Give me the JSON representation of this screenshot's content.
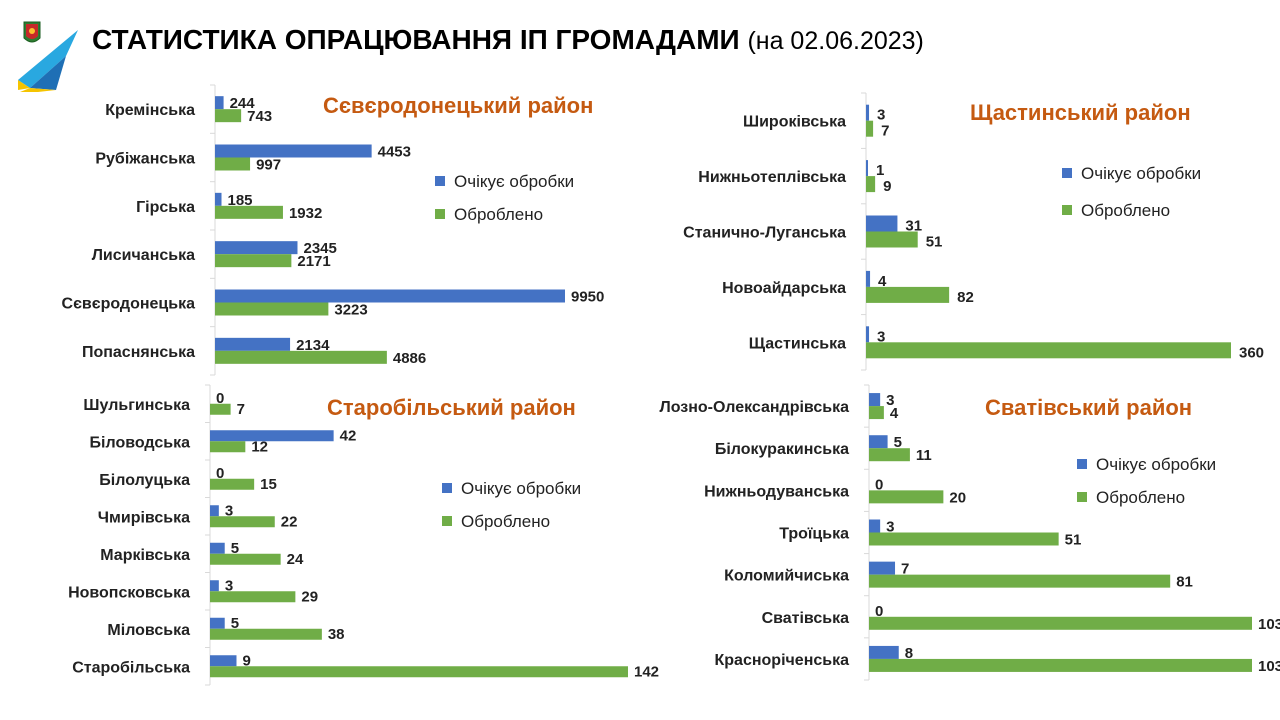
{
  "header": {
    "title": "СТАТИСТИКА ОПРАЦЮВАННЯ ІП ГРОМАДАМИ",
    "date": "(на 02.06.2023)"
  },
  "colors": {
    "pending": "#4472c4",
    "processed": "#70ad47",
    "title": "#c55a11"
  },
  "chart_data": [
    {
      "type": "bar",
      "orientation": "horizontal",
      "title": "Сєвєродонецький район",
      "legend_position": "right",
      "categories": [
        "Кремінська",
        "Рубіжанська",
        "Гірська",
        "Лисичанська",
        "Сєвєродонецька",
        "Попаснянська"
      ],
      "series": [
        {
          "name": "Очікує обробки",
          "values": [
            244,
            4453,
            185,
            2345,
            9950,
            2134
          ]
        },
        {
          "name": "Оброблено",
          "values": [
            743,
            997,
            1932,
            2171,
            3223,
            4886
          ]
        }
      ]
    },
    {
      "type": "bar",
      "orientation": "horizontal",
      "title": "Щастинський район",
      "legend_position": "right",
      "categories": [
        "Широківська",
        "Нижньотеплівська",
        "Станично-Луганська",
        "Новоайдарська",
        "Щастинська"
      ],
      "series": [
        {
          "name": "Очікує обробки",
          "values": [
            3,
            1,
            31,
            4,
            3
          ]
        },
        {
          "name": "Оброблено",
          "values": [
            7,
            9,
            51,
            82,
            360
          ]
        }
      ]
    },
    {
      "type": "bar",
      "orientation": "horizontal",
      "title": "Старобільський район",
      "legend_position": "right",
      "categories": [
        "Шульгинська",
        "Біловодська",
        "Білолуцька",
        "Чмирівська",
        "Марківська",
        "Новопсковська",
        "Міловська",
        "Старобільська"
      ],
      "series": [
        {
          "name": "Очікує обробки",
          "values": [
            0,
            42,
            0,
            3,
            5,
            3,
            5,
            9
          ]
        },
        {
          "name": "Оброблено",
          "values": [
            7,
            12,
            15,
            22,
            24,
            29,
            38,
            142
          ]
        }
      ]
    },
    {
      "type": "bar",
      "orientation": "horizontal",
      "title": "Сватівський район",
      "legend_position": "right",
      "categories": [
        "Лозно-Олександрівська",
        "Білокуракинська",
        "Нижньодуванська",
        "Троїцька",
        "Коломийчиська",
        "Сватівська",
        "Красноріченська"
      ],
      "series": [
        {
          "name": "Очікує обробки",
          "values": [
            3,
            5,
            0,
            3,
            7,
            0,
            8
          ]
        },
        {
          "name": "Оброблено",
          "values": [
            4,
            11,
            20,
            51,
            81,
            103,
            103
          ]
        }
      ]
    }
  ]
}
